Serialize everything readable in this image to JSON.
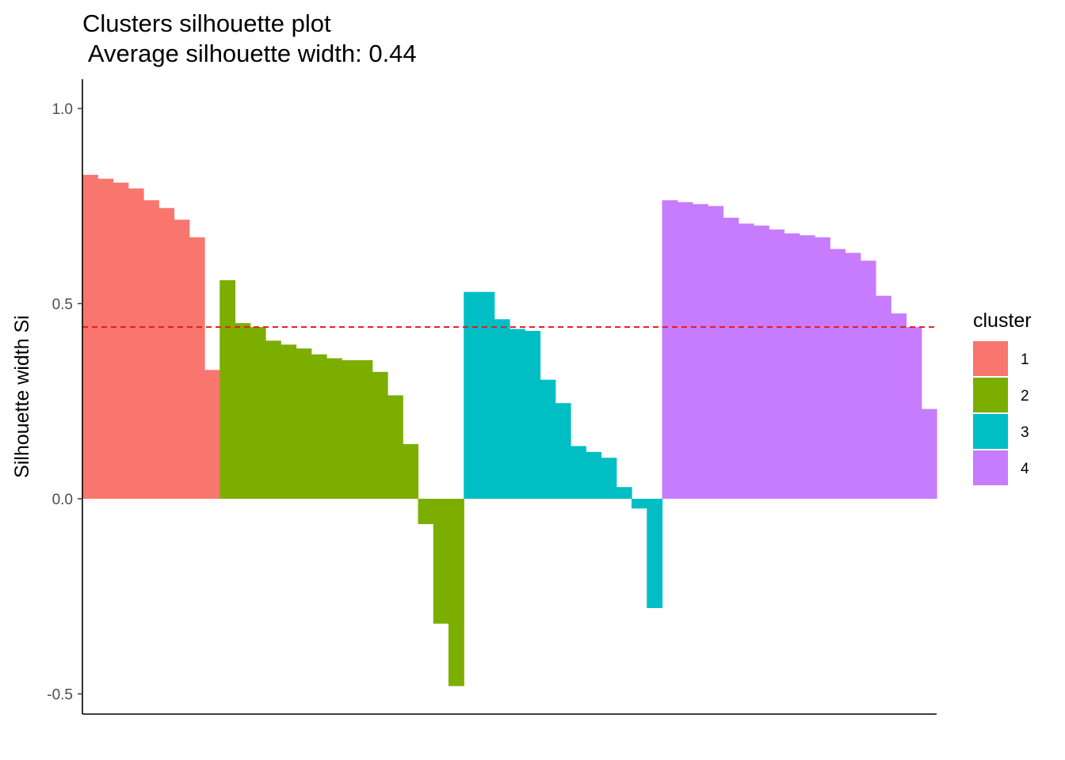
{
  "chart_data": {
    "type": "bar",
    "title": "Clusters silhouette plot",
    "subtitle": " Average silhouette width: 0.44",
    "xlabel": "",
    "ylabel": "Silhouette width Si",
    "ylim": [
      -0.55,
      1.07
    ],
    "yticks": [
      1.0,
      0.5,
      0.0,
      -0.5
    ],
    "ytick_labels": [
      "1.0",
      "0.5",
      "0.0",
      "-0.5"
    ],
    "grid": false,
    "legend_position": "right",
    "legend_title": "cluster",
    "average_line": {
      "value": 0.44,
      "color": "#e41a1c",
      "style": "dashed"
    },
    "series": [
      {
        "name": "1",
        "color": "#f8766d",
        "values": [
          0.83,
          0.82,
          0.81,
          0.795,
          0.765,
          0.745,
          0.715,
          0.67,
          0.33
        ]
      },
      {
        "name": "2",
        "color": "#7cae00",
        "values": [
          0.56,
          0.45,
          0.44,
          0.405,
          0.395,
          0.385,
          0.37,
          0.36,
          0.355,
          0.355,
          0.325,
          0.265,
          0.14,
          -0.065,
          -0.32,
          -0.48
        ]
      },
      {
        "name": "3",
        "color": "#00bfc4",
        "values": [
          0.53,
          0.53,
          0.46,
          0.435,
          0.43,
          0.305,
          0.245,
          0.135,
          0.12,
          0.105,
          0.03,
          -0.025,
          -0.28
        ]
      },
      {
        "name": "4",
        "color": "#c77cff",
        "values": [
          0.765,
          0.76,
          0.755,
          0.75,
          0.72,
          0.705,
          0.7,
          0.69,
          0.68,
          0.675,
          0.67,
          0.64,
          0.63,
          0.61,
          0.52,
          0.475,
          0.44,
          0.23
        ]
      }
    ]
  }
}
